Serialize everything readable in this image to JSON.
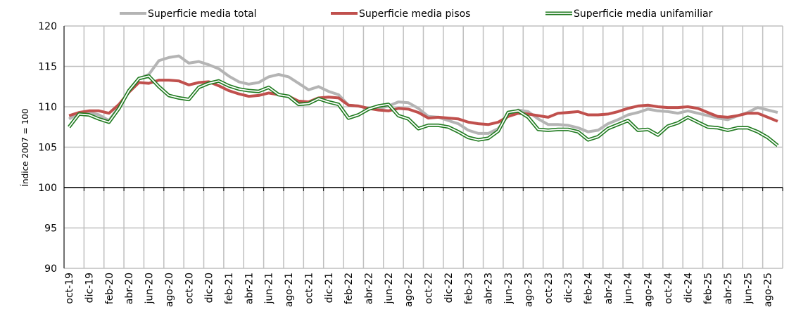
{
  "chart_data": {
    "type": "line",
    "y_label": "Índice 2007 = 100",
    "categories": [
      "oct-19",
      null,
      "dic-19",
      null,
      "feb-20",
      null,
      "abr-20",
      null,
      "jun-20",
      null,
      "ago-20",
      null,
      "oct-20",
      null,
      "dic-20",
      null,
      "feb-21",
      null,
      "abr-21",
      null,
      "jun-21",
      null,
      "ago-21",
      null,
      "oct-21",
      null,
      "dic-21",
      null,
      "feb-22",
      null,
      "abr-22",
      null,
      "jun-22",
      null,
      "ago-22",
      null,
      "oct-22",
      null,
      "dic-22",
      null,
      "feb-23",
      null,
      "abr-23",
      null,
      "jun-23",
      null,
      "ago-23",
      null,
      "oct-23",
      null,
      "dic-23",
      null,
      "feb-24",
      null,
      "abr-24",
      null,
      "jun-24",
      null,
      "ago-24",
      null,
      "oct-24",
      null,
      "dic-24",
      null,
      "feb-25",
      null,
      "abr-25",
      null,
      "jun-25",
      null,
      "ago-25",
      null
    ],
    "series": [
      {
        "name": "Superficie media total",
        "color": "#b4b4b4",
        "style": "solid",
        "values": [
          108.5,
          109.2,
          109.3,
          109.0,
          108.3,
          110,
          112,
          113.5,
          114,
          115.7,
          116.1,
          116.3,
          115.4,
          115.6,
          115.2,
          114.7,
          113.8,
          113.1,
          112.8,
          113.0,
          113.7,
          114.0,
          113.7,
          112.9,
          112.1,
          112.5,
          111.9,
          111.5,
          110.2,
          110.1,
          109.8,
          109.7,
          110.1,
          110.6,
          110.5,
          109.8,
          108.8,
          108.7,
          108.3,
          107.9,
          107.1,
          106.7,
          106.7,
          107.3,
          108.9,
          109.6,
          109.4,
          108.5,
          107.8,
          107.8,
          107.7,
          107.4,
          106.9,
          107.1,
          107.9,
          108.4,
          109.0,
          109.3,
          109.7,
          109.5,
          109.4,
          109.2,
          109.5,
          109.2,
          108.9,
          108.6,
          108.4,
          108.9,
          109.3,
          109.9,
          109.6,
          109.3
        ]
      },
      {
        "name": "Superficie media pisos",
        "color": "#c0504d",
        "style": "solid",
        "values": [
          108.9,
          109.3,
          109.5,
          109.5,
          109.2,
          110.3,
          111.8,
          113.0,
          112.9,
          113.3,
          113.3,
          113.2,
          112.7,
          113.0,
          113.1,
          112.6,
          112.0,
          111.6,
          111.3,
          111.4,
          111.7,
          111.5,
          111.3,
          110.7,
          110.6,
          111.1,
          111.2,
          111.1,
          110.2,
          110.1,
          109.8,
          109.6,
          109.5,
          109.8,
          109.7,
          109.3,
          108.6,
          108.7,
          108.6,
          108.5,
          108.1,
          107.9,
          107.8,
          108.1,
          108.8,
          109.2,
          109.1,
          108.9,
          108.7,
          109.2,
          109.3,
          109.4,
          109.0,
          109.0,
          109.1,
          109.4,
          109.8,
          110.1,
          110.2,
          110.0,
          109.9,
          109.9,
          110.0,
          109.8,
          109.3,
          108.8,
          108.7,
          108.9,
          109.2,
          109.2,
          108.7,
          108.2
        ]
      },
      {
        "name": "Superficie media unifamiliar",
        "color": "#1e7a1e",
        "style": "double",
        "values": [
          107.5,
          109.1,
          109.0,
          108.5,
          108.1,
          109.8,
          112.0,
          113.5,
          113.8,
          112.5,
          111.4,
          111.1,
          110.9,
          112.4,
          112.9,
          113.2,
          112.6,
          112.2,
          112.0,
          111.9,
          112.4,
          111.5,
          111.3,
          110.3,
          110.4,
          111.0,
          110.6,
          110.3,
          108.6,
          109.0,
          109.7,
          110.1,
          110.3,
          108.9,
          108.5,
          107.3,
          107.7,
          107.7,
          107.5,
          106.9,
          106.2,
          105.9,
          106.1,
          107.0,
          109.3,
          109.5,
          108.7,
          107.2,
          107.1,
          107.2,
          107.2,
          106.9,
          105.9,
          106.3,
          107.3,
          107.8,
          108.3,
          107.1,
          107.2,
          106.5,
          107.6,
          108.0,
          108.7,
          108.1,
          107.5,
          107.4,
          107.1,
          107.4,
          107.4,
          106.9,
          106.2,
          105.2
        ]
      }
    ],
    "ylim": [
      90,
      120
    ],
    "yticks": [
      90,
      95,
      100,
      105,
      110,
      115,
      120
    ],
    "xaxis_crosses": 100,
    "grid": true,
    "legend": "top"
  }
}
